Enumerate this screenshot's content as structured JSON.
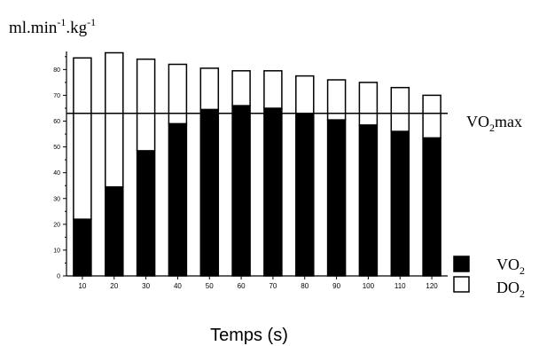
{
  "chart_data": {
    "type": "bar",
    "stacked": true,
    "categories": [
      "10",
      "20",
      "30",
      "40",
      "50",
      "60",
      "70",
      "80",
      "90",
      "100",
      "110",
      "120"
    ],
    "series": [
      {
        "name": "VO",
        "subscript": "2",
        "fill": "#000000",
        "values": [
          22,
          34.5,
          48.5,
          59,
          64.5,
          66,
          65,
          63,
          60.5,
          58.5,
          56,
          53.5
        ]
      },
      {
        "name": "DO",
        "subscript": "2",
        "fill": "#ffffff",
        "values": [
          62.5,
          52,
          35.5,
          23,
          16,
          13.5,
          14.5,
          14.5,
          15.5,
          16.5,
          17,
          16.5
        ]
      }
    ],
    "reference_line": {
      "value": 63,
      "label": "VO",
      "label_sub": "2",
      "label_suffix": "max"
    },
    "ylabel": "ml.min",
    "ylabel_parts": [
      "ml.min",
      "-1",
      ".kg",
      "-1"
    ],
    "xlabel": "Temps (s)",
    "ylim": [
      0,
      87
    ],
    "yticks_labeled": [
      "0",
      "10",
      "20",
      "30",
      "40",
      "50",
      "60",
      "70",
      "80"
    ],
    "yticks_values": [
      0,
      10,
      20,
      30,
      40,
      50,
      60,
      70,
      80
    ],
    "grid": false,
    "legend_position": "bottom-right"
  }
}
